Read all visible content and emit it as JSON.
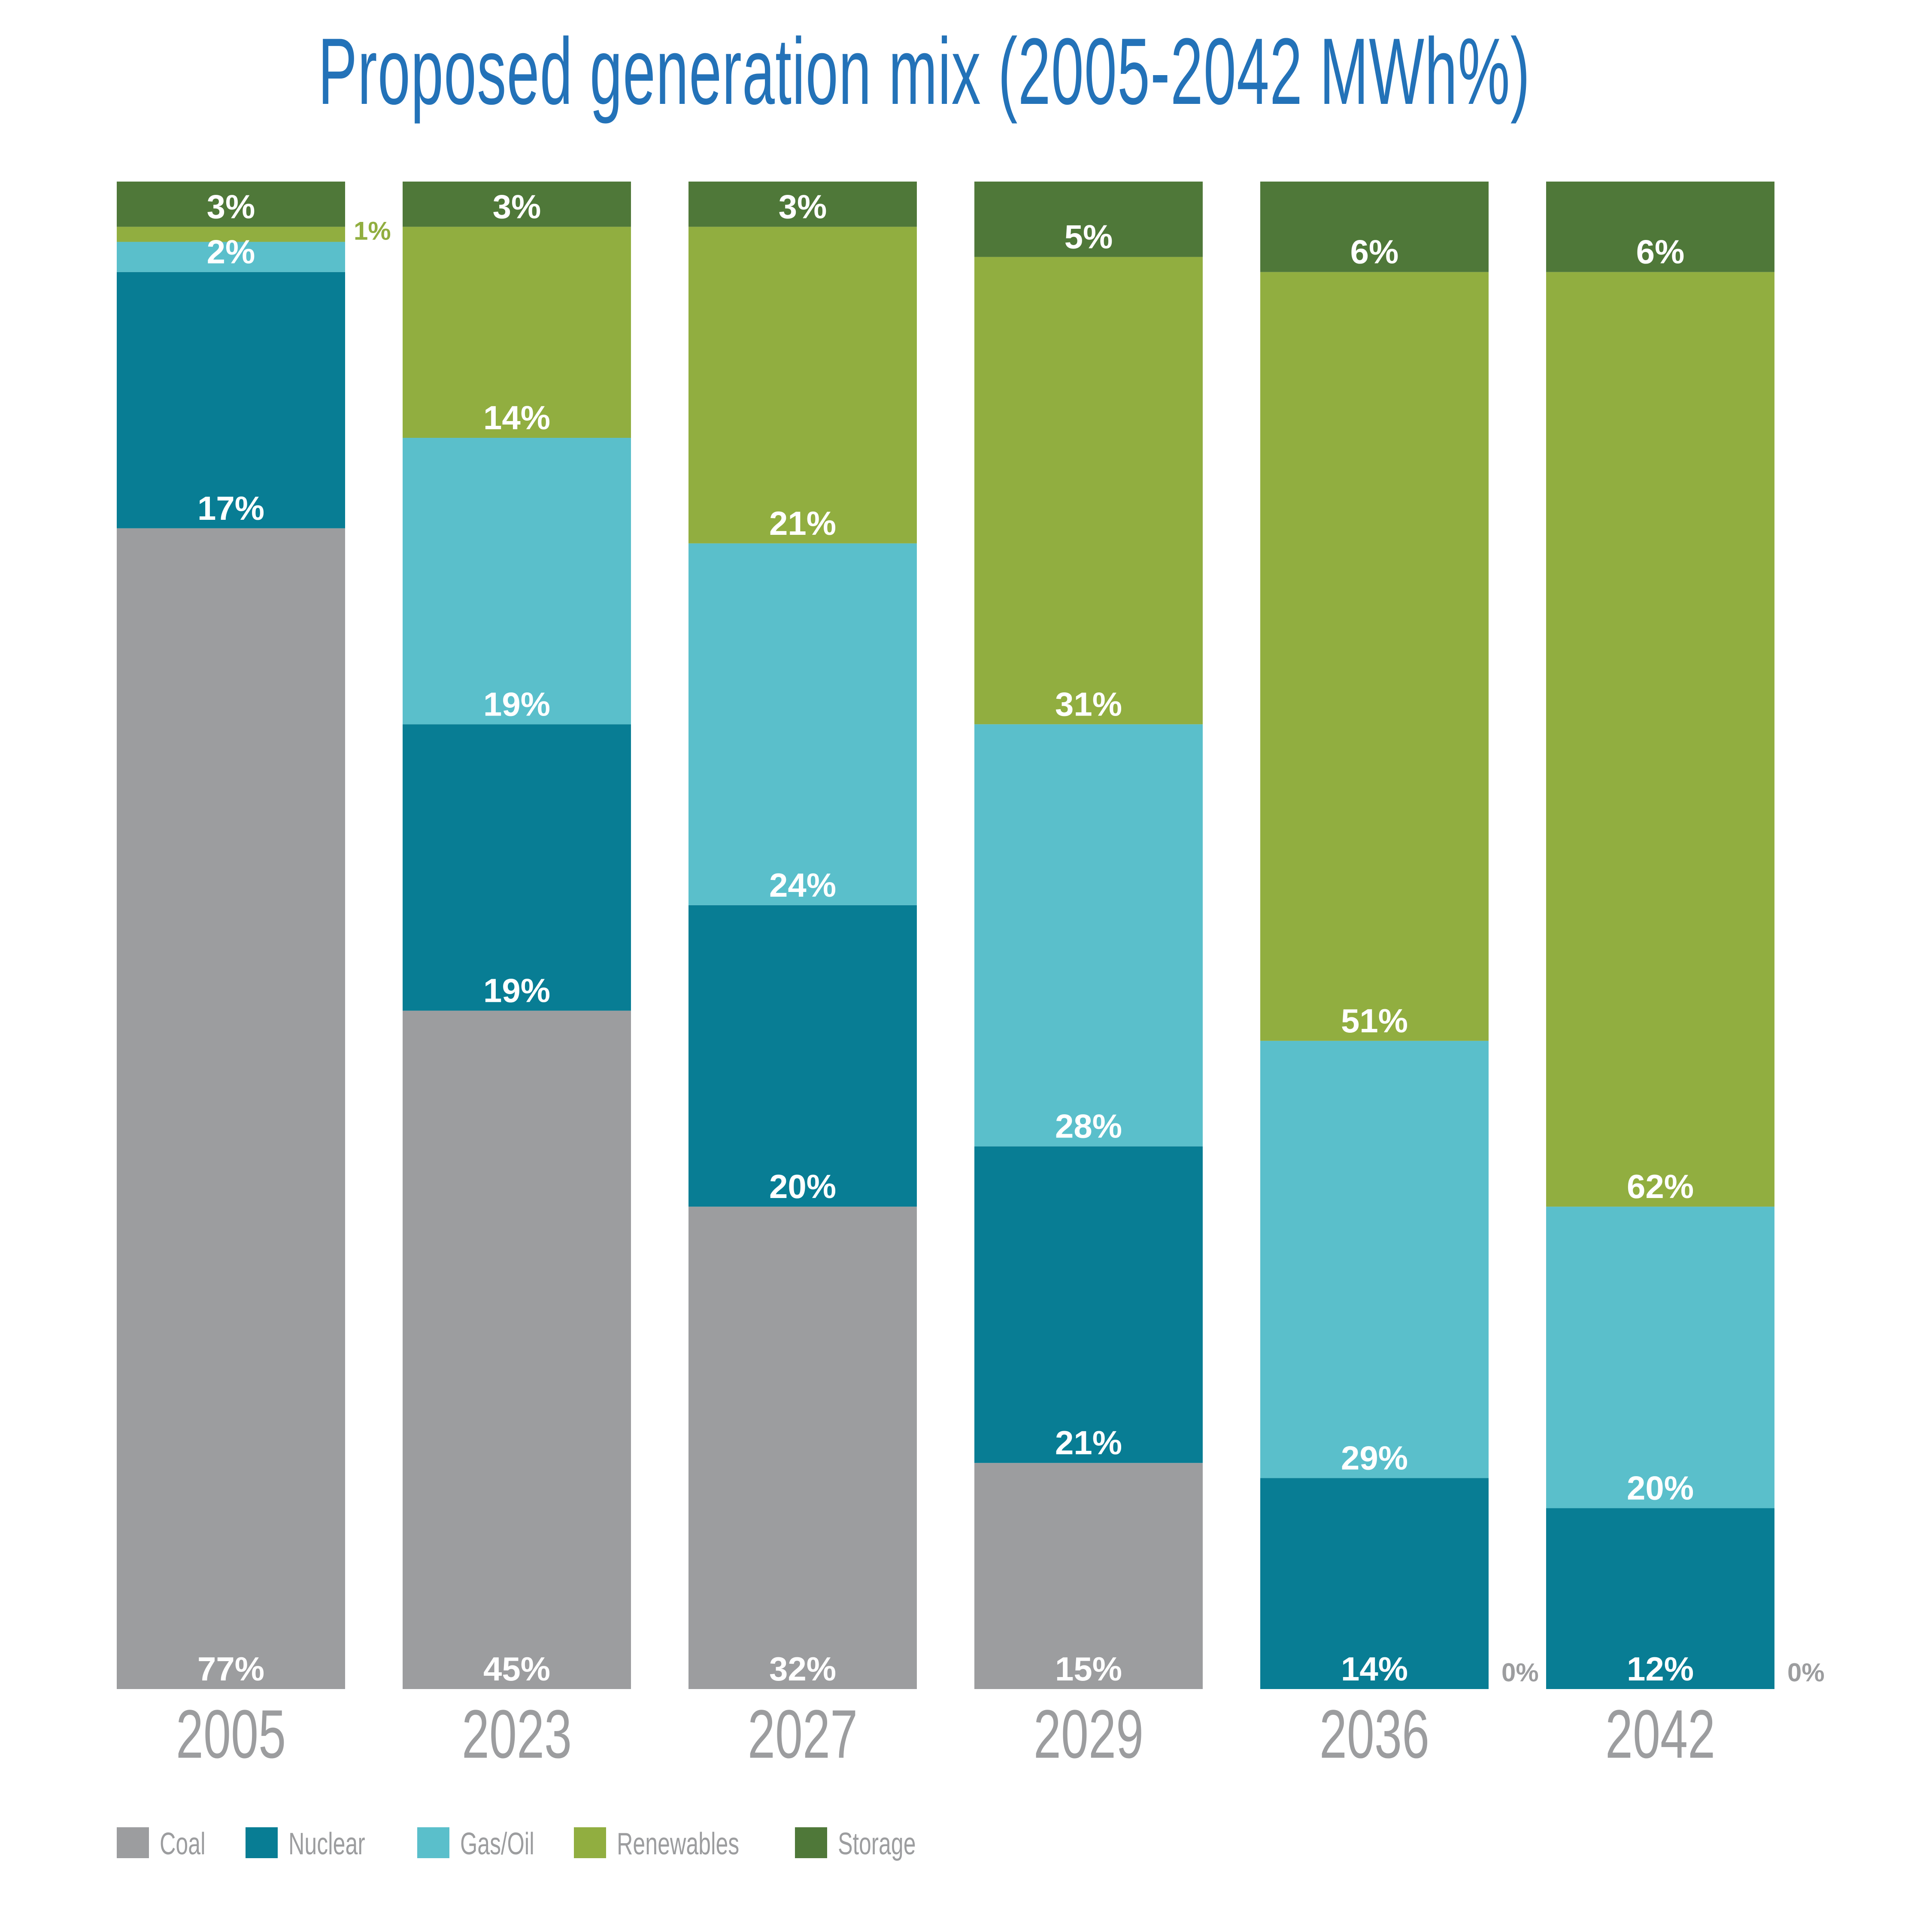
{
  "chart_data": {
    "type": "bar",
    "stacked": true,
    "title": "Proposed generation mix (2005-2042 MWh%)",
    "xlabel": "",
    "ylabel": "",
    "ylim": [
      0,
      100
    ],
    "grid": false,
    "legend_position": "bottom-left",
    "categories": [
      "2005",
      "2023",
      "2027",
      "2029",
      "2036",
      "2042"
    ],
    "series": [
      {
        "name": "Coal",
        "color": "#9c9d9f",
        "values": [
          77,
          45,
          32,
          15,
          0,
          0
        ]
      },
      {
        "name": "Nuclear",
        "color": "#087d94",
        "values": [
          17,
          19,
          20,
          21,
          14,
          12
        ]
      },
      {
        "name": "Gas/Oil",
        "color": "#5abfcb",
        "values": [
          2,
          19,
          24,
          28,
          29,
          20
        ]
      },
      {
        "name": "Renewables",
        "color": "#91ae40",
        "values": [
          1,
          14,
          21,
          31,
          51,
          62
        ]
      },
      {
        "name": "Storage",
        "color": "#4f7839",
        "values": [
          3,
          3,
          3,
          5,
          6,
          6
        ]
      }
    ],
    "data_labels": [
      [
        "77%",
        "17%",
        "2%",
        "1%",
        "3%"
      ],
      [
        "45%",
        "19%",
        "19%",
        "14%",
        "3%"
      ],
      [
        "32%",
        "20%",
        "24%",
        "21%",
        "3%"
      ],
      [
        "15%",
        "21%",
        "28%",
        "31%",
        "5%"
      ],
      [
        "0%",
        "14%",
        "29%",
        "51%",
        "6%"
      ],
      [
        "0%",
        "12%",
        "20%",
        "62%",
        "6%"
      ]
    ]
  }
}
